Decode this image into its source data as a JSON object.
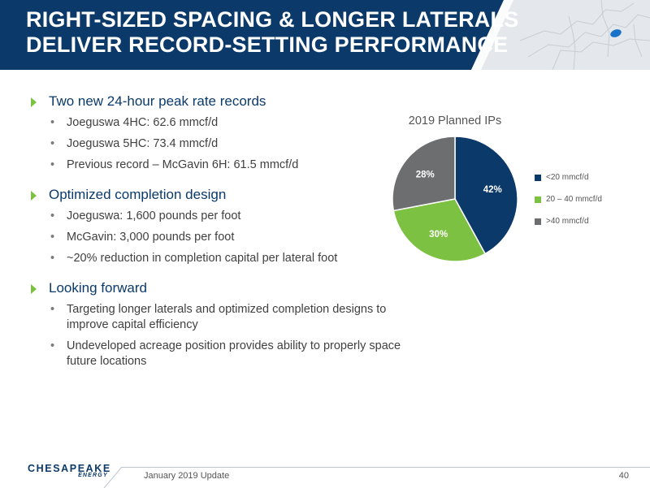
{
  "title": {
    "line1": "RIGHT-SIZED SPACING & LONGER LATERALS",
    "line2": "DELIVER RECORD-SETTING PERFORMANCE"
  },
  "sections": [
    {
      "heading": "Two new 24-hour peak rate records",
      "items": [
        "Joeguswa 4HC: 62.6 mmcf/d",
        "Joeguswa 5HC: 73.4 mmcf/d",
        "Previous record – McGavin 6H: 61.5 mmcf/d"
      ]
    },
    {
      "heading": "Optimized completion design",
      "items": [
        "Joeguswa: 1,600 pounds per foot",
        "McGavin: 3,000 pounds per foot",
        "~20% reduction in completion capital per lateral foot"
      ]
    },
    {
      "heading": "Looking forward",
      "items": [
        "Targeting longer laterals and optimized completion designs to improve capital efficiency",
        "Undeveloped acreage position provides ability to properly space future locations"
      ]
    }
  ],
  "chart_data": {
    "type": "pie",
    "title": "2019 Planned IPs",
    "slices": [
      {
        "label": "<20 mmcf/d",
        "value": 42,
        "display": "42%",
        "color": "#0b3a6a"
      },
      {
        "label": "20 – 40 mmcf/d",
        "value": 30,
        "display": "30%",
        "color": "#7dc142"
      },
      {
        "label": ">40 mmcf/d",
        "value": 28,
        "display": "28%",
        "color": "#6d6e70"
      }
    ],
    "legend_position": "right"
  },
  "footer": {
    "date": "January 2019 Update",
    "page": "40",
    "logo_name": "CHESAPEAKE",
    "logo_sub": "ENERGY"
  },
  "colors": {
    "brand_navy": "#0b3a6a",
    "accent_green": "#7dc142"
  },
  "icons": {
    "bullet": "green-triangle-icon",
    "map": "us-northeast-map-icon"
  }
}
